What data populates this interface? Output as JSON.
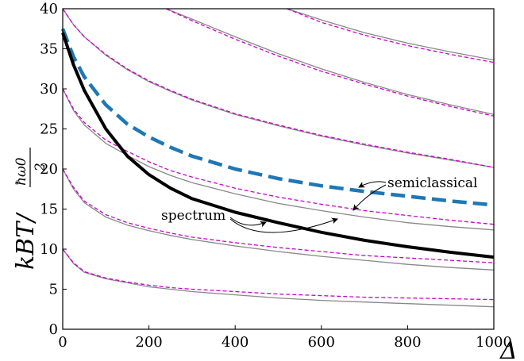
{
  "chart_data": {
    "type": "line",
    "title": "",
    "xlabel": "Δ",
    "ylabel": "k_B T / (ħω₀/2)",
    "ylabel_parts": {
      "prefix": "kBT/",
      "num": "ħω0",
      "den": "2"
    },
    "xlim": [
      0,
      1000
    ],
    "ylim": [
      0,
      40
    ],
    "xticks": [
      0,
      200,
      400,
      600,
      800,
      1000
    ],
    "yticks": [
      0,
      5,
      10,
      15,
      20,
      25,
      30,
      35,
      40
    ],
    "x_samples": [
      0,
      25,
      50,
      100,
      150,
      200,
      250,
      300,
      400,
      500,
      600,
      700,
      800,
      900,
      1000
    ],
    "series": [
      {
        "style": "thin-gray",
        "color": "#888888",
        "values": [
          10,
          8.2,
          7.1,
          6.3,
          5.8,
          5.3,
          5.0,
          4.7,
          4.3,
          3.9,
          3.6,
          3.4,
          3.2,
          3.0,
          2.8
        ]
      },
      {
        "style": "thin-magenta-dashed",
        "color": "#cc00cc",
        "values": [
          10,
          8.3,
          7.2,
          6.4,
          5.9,
          5.5,
          5.2,
          5.0,
          4.7,
          4.4,
          4.2,
          4.0,
          3.9,
          3.8,
          3.7
        ]
      },
      {
        "style": "thin-gray",
        "color": "#888888",
        "values": [
          20,
          17.5,
          15.8,
          14.0,
          13.0,
          12.3,
          11.7,
          11.2,
          10.4,
          9.7,
          9.1,
          8.6,
          8.1,
          7.7,
          7.4
        ]
      },
      {
        "style": "thin-magenta-dashed",
        "color": "#cc00cc",
        "values": [
          20,
          17.7,
          16.0,
          14.3,
          13.3,
          12.6,
          12.0,
          11.5,
          10.8,
          10.2,
          9.7,
          9.2,
          8.9,
          8.6,
          8.3
        ]
      },
      {
        "style": "thin-gray",
        "color": "#888888",
        "values": [
          30,
          27.3,
          25.5,
          23.2,
          21.7,
          20.3,
          19.2,
          18.3,
          16.9,
          15.7,
          14.8,
          14.0,
          13.3,
          12.8,
          12.4
        ]
      },
      {
        "style": "thin-magenta-dashed",
        "color": "#cc00cc",
        "values": [
          30,
          27.5,
          25.8,
          23.6,
          22.2,
          20.9,
          19.8,
          19.0,
          17.6,
          16.5,
          15.6,
          14.8,
          14.2,
          13.6,
          13.1
        ]
      },
      {
        "style": "thin-gray",
        "color": "#888888",
        "values": [
          40,
          38.0,
          36.5,
          34.2,
          32.4,
          30.9,
          29.7,
          28.6,
          26.8,
          25.4,
          24.1,
          23.0,
          22.0,
          21.1,
          20.2
        ]
      },
      {
        "style": "thin-magenta-dashed",
        "color": "#cc00cc",
        "values": [
          40,
          38.0,
          36.5,
          34.3,
          32.5,
          31.0,
          29.8,
          28.7,
          26.9,
          25.5,
          24.2,
          23.1,
          22.1,
          21.2,
          20.2
        ]
      },
      {
        "style": "thin-gray",
        "color": "#888888",
        "x": [
          240,
          300,
          400,
          500,
          600,
          700,
          800,
          900,
          1000
        ],
        "values": [
          40,
          38.7,
          36.5,
          34.4,
          32.5,
          30.8,
          29.3,
          28.0,
          26.8
        ]
      },
      {
        "style": "thin-magenta-dashed",
        "color": "#cc00cc",
        "x": [
          240,
          300,
          400,
          500,
          600,
          700,
          800,
          900,
          1000
        ],
        "values": [
          40,
          38.5,
          36.2,
          34.1,
          32.2,
          30.6,
          29.1,
          27.8,
          26.6
        ]
      },
      {
        "style": "thin-gray",
        "color": "#888888",
        "x": [
          520,
          600,
          700,
          800,
          900,
          1000
        ],
        "values": [
          40,
          38.6,
          37.0,
          35.7,
          34.6,
          33.6
        ]
      },
      {
        "style": "thin-magenta-dashed",
        "color": "#cc00cc",
        "x": [
          520,
          600,
          700,
          800,
          900,
          1000
        ],
        "values": [
          40,
          38.3,
          36.7,
          35.4,
          34.3,
          33.3
        ]
      },
      {
        "style": "thick-blue-dashed",
        "color": "#1f77b4",
        "values": [
          37.5,
          34.0,
          31.5,
          28.0,
          25.6,
          24.0,
          22.7,
          21.6,
          20.0,
          18.8,
          17.9,
          17.2,
          16.6,
          16.0,
          15.5
        ]
      },
      {
        "style": "thick-black",
        "color": "#000000",
        "values": [
          37.0,
          33.0,
          29.8,
          25.0,
          21.6,
          19.3,
          17.6,
          16.3,
          14.6,
          13.3,
          12.1,
          11.1,
          10.3,
          9.6,
          9.0
        ]
      }
    ],
    "annotations": [
      {
        "text": "semiclassical",
        "x": 760,
        "y": 17.9
      },
      {
        "text": "spectrum",
        "x": 225,
        "y": 13.5
      }
    ],
    "grid": false,
    "legend": "none"
  }
}
